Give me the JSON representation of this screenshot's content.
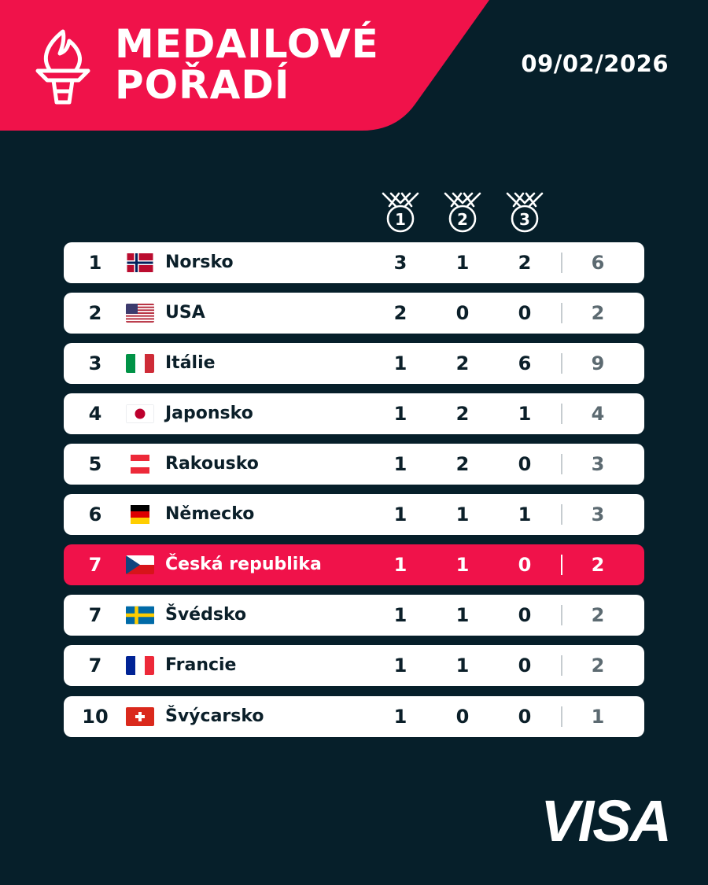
{
  "header": {
    "title_line1": "MEDAILOVÉ",
    "title_line2": "POŘADÍ",
    "date": "09/02/2026",
    "accent_color": "#f0124a",
    "background_color": "#061f2a",
    "icon": "torch-icon"
  },
  "medal_columns": [
    {
      "icon": "gold-medal-icon",
      "label": "1"
    },
    {
      "icon": "silver-medal-icon",
      "label": "2"
    },
    {
      "icon": "bronze-medal-icon",
      "label": "3"
    }
  ],
  "rows": [
    {
      "rank": "1",
      "flag": "norway-flag-icon",
      "country": "Norsko",
      "gold": "3",
      "silver": "1",
      "bronze": "2",
      "total": "6"
    },
    {
      "rank": "2",
      "flag": "usa-flag-icon",
      "country": "USA",
      "gold": "2",
      "silver": "0",
      "bronze": "0",
      "total": "2"
    },
    {
      "rank": "3",
      "flag": "italy-flag-icon",
      "country": "Itálie",
      "gold": "1",
      "silver": "2",
      "bronze": "6",
      "total": "9"
    },
    {
      "rank": "4",
      "flag": "japan-flag-icon",
      "country": "Japonsko",
      "gold": "1",
      "silver": "2",
      "bronze": "1",
      "total": "4"
    },
    {
      "rank": "5",
      "flag": "austria-flag-icon",
      "country": "Rakousko",
      "gold": "1",
      "silver": "2",
      "bronze": "0",
      "total": "3"
    },
    {
      "rank": "6",
      "flag": "germany-flag-icon",
      "country": "Německo",
      "gold": "1",
      "silver": "1",
      "bronze": "1",
      "total": "3"
    },
    {
      "rank": "7",
      "flag": "czech-flag-icon",
      "country": "Česká republika",
      "gold": "1",
      "silver": "1",
      "bronze": "0",
      "total": "2",
      "highlighted": true
    },
    {
      "rank": "7",
      "flag": "sweden-flag-icon",
      "country": "Švédsko",
      "gold": "1",
      "silver": "1",
      "bronze": "0",
      "total": "2"
    },
    {
      "rank": "7",
      "flag": "france-flag-icon",
      "country": "Francie",
      "gold": "1",
      "silver": "1",
      "bronze": "0",
      "total": "2"
    },
    {
      "rank": "10",
      "flag": "switzerland-flag-icon",
      "country": "Švýcarsko",
      "gold": "1",
      "silver": "0",
      "bronze": "0",
      "total": "1"
    }
  ],
  "sponsor": {
    "name": "VISA",
    "icon": "visa-logo"
  }
}
